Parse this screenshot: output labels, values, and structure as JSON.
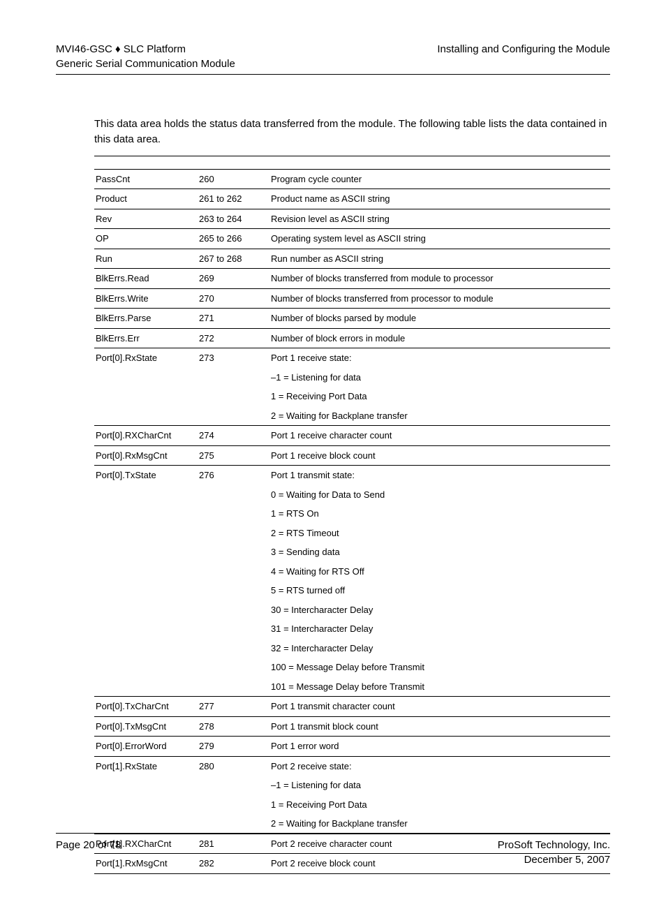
{
  "header": {
    "left_line1": "MVI46-GSC ♦ SLC Platform",
    "left_line2": "Generic Serial Communication Module",
    "right_line1": "Installing and Configuring the Module"
  },
  "intro": "This data area holds the status data transferred from the module. The following table lists the data contained in this data area.",
  "rows": [
    {
      "name": "PassCnt",
      "offset": "260",
      "desc": [
        "Program cycle counter"
      ]
    },
    {
      "name": "Product",
      "offset": "261 to 262",
      "desc": [
        "Product name as ASCII string"
      ]
    },
    {
      "name": "Rev",
      "offset": "263 to 264",
      "desc": [
        "Revision level as ASCII string"
      ]
    },
    {
      "name": "OP",
      "offset": "265 to 266",
      "desc": [
        "Operating system level as ASCII string"
      ]
    },
    {
      "name": "Run",
      "offset": "267 to 268",
      "desc": [
        "Run number as ASCII string"
      ]
    },
    {
      "name": "BlkErrs.Read",
      "offset": "269",
      "desc": [
        "Number of blocks transferred from module to processor"
      ]
    },
    {
      "name": "BlkErrs.Write",
      "offset": "270",
      "desc": [
        "Number of blocks transferred from processor to module"
      ]
    },
    {
      "name": "BlkErrs.Parse",
      "offset": "271",
      "desc": [
        "Number of blocks parsed by module"
      ]
    },
    {
      "name": "BlkErrs.Err",
      "offset": "272",
      "desc": [
        "Number of block errors in module"
      ]
    },
    {
      "name": "Port[0].RxState",
      "offset": "273",
      "desc": [
        "Port 1 receive state:",
        "–1 = Listening for data",
        "1 = Receiving Port Data",
        "2 = Waiting for Backplane transfer"
      ]
    },
    {
      "name": "Port[0].RXCharCnt",
      "offset": "274",
      "desc": [
        "Port 1 receive character count"
      ]
    },
    {
      "name": "Port[0].RxMsgCnt",
      "offset": "275",
      "desc": [
        "Port 1 receive block count"
      ]
    },
    {
      "name": "Port[0].TxState",
      "offset": "276",
      "desc": [
        "Port 1 transmit state:",
        "0 = Waiting for Data to Send",
        "1 = RTS On",
        "2 = RTS Timeout",
        "3 = Sending data",
        "4 = Waiting for RTS Off",
        "5 = RTS turned off",
        "30 = Intercharacter Delay",
        "31 = Intercharacter Delay",
        "32 = Intercharacter Delay",
        "100 = Message Delay before Transmit",
        "101 = Message Delay before Transmit"
      ]
    },
    {
      "name": "Port[0].TxCharCnt",
      "offset": "277",
      "desc": [
        "Port 1 transmit character count"
      ]
    },
    {
      "name": "Port[0].TxMsgCnt",
      "offset": "278",
      "desc": [
        "Port 1 transmit block count"
      ]
    },
    {
      "name": "Port[0].ErrorWord",
      "offset": "279",
      "desc": [
        "Port 1 error word"
      ]
    },
    {
      "name": "Port[1].RxState",
      "offset": "280",
      "desc": [
        "Port 2 receive state:",
        "–1 = Listening for data",
        "1 = Receiving Port Data",
        "2 = Waiting for Backplane transfer"
      ]
    },
    {
      "name": "Port[1].RXCharCnt",
      "offset": "281",
      "desc": [
        "Port 2 receive character count"
      ]
    },
    {
      "name": "Port[1].RxMsgCnt",
      "offset": "282",
      "desc": [
        "Port 2 receive block count"
      ]
    }
  ],
  "footer": {
    "left": "Page 20 of 78",
    "right_line1": "ProSoft Technology, Inc.",
    "right_line2": "December 5, 2007"
  }
}
